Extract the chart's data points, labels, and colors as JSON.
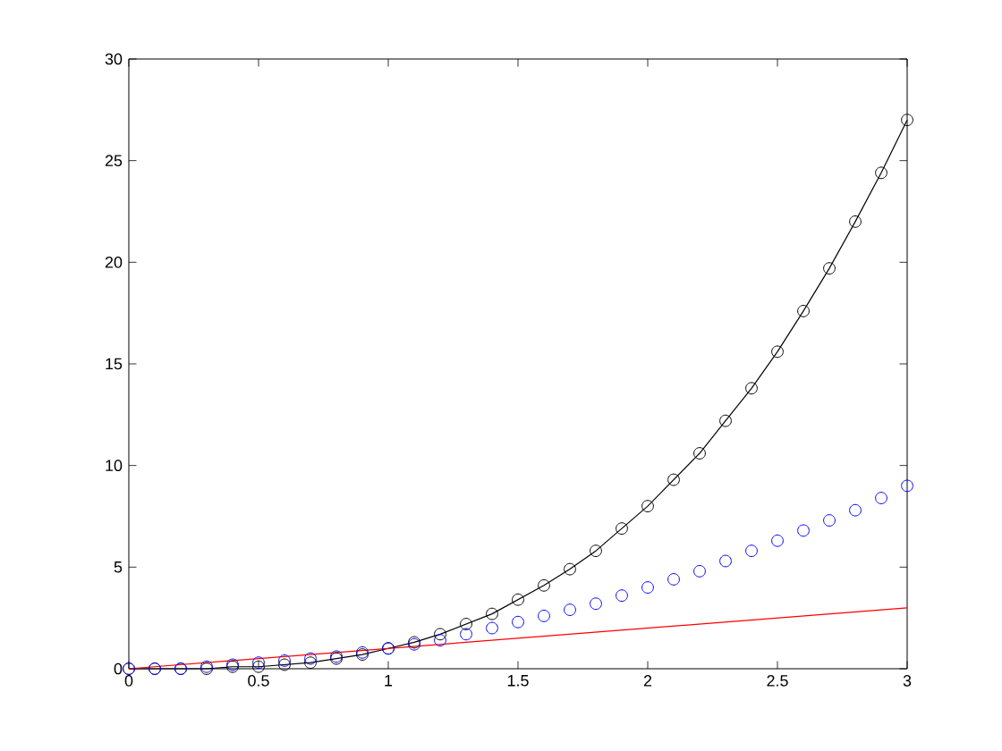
{
  "chart_data": {
    "type": "line",
    "x": [
      0,
      0.1,
      0.2,
      0.3,
      0.4,
      0.5,
      0.6,
      0.7,
      0.8,
      0.9,
      1,
      1.1,
      1.2,
      1.3,
      1.4,
      1.5,
      1.6,
      1.7,
      1.8,
      1.9,
      2,
      2.1,
      2.2,
      2.3,
      2.4,
      2.5,
      2.6,
      2.7,
      2.8,
      2.9,
      3
    ],
    "series": [
      {
        "color": "#000000",
        "marker": "circle",
        "line_style": "solid",
        "values": [
          0,
          0,
          0,
          0,
          0.1,
          0.1,
          0.2,
          0.3,
          0.5,
          0.7,
          1,
          1.3,
          1.7,
          2.2,
          2.7,
          3.4,
          4.1,
          4.9,
          5.8,
          6.9,
          8,
          9.3,
          10.6,
          12.2,
          13.8,
          15.6,
          17.6,
          19.7,
          22,
          24.4,
          27
        ]
      },
      {
        "type": "scatter",
        "color": "#0000ff",
        "marker": "circle",
        "values": [
          0,
          0,
          0,
          0.1,
          0.2,
          0.3,
          0.4,
          0.5,
          0.6,
          0.8,
          1,
          1.2,
          1.4,
          1.7,
          2,
          2.3,
          2.6,
          2.9,
          3.2,
          3.6,
          4,
          4.4,
          4.8,
          5.3,
          5.8,
          6.3,
          6.8,
          7.3,
          7.8,
          8.4,
          9
        ]
      },
      {
        "type": "line",
        "color": "#ff0000",
        "marker": "none",
        "line_style": "solid",
        "x": [
          0,
          3
        ],
        "values": [
          0,
          3
        ]
      }
    ],
    "xlim": [
      0,
      3
    ],
    "xticks": [
      0,
      0.5,
      1,
      1.5,
      2,
      2.5,
      3
    ],
    "ylim": [
      0,
      30
    ],
    "yticks": [
      0,
      5,
      10,
      15,
      20,
      25,
      30
    ],
    "grid": false
  }
}
